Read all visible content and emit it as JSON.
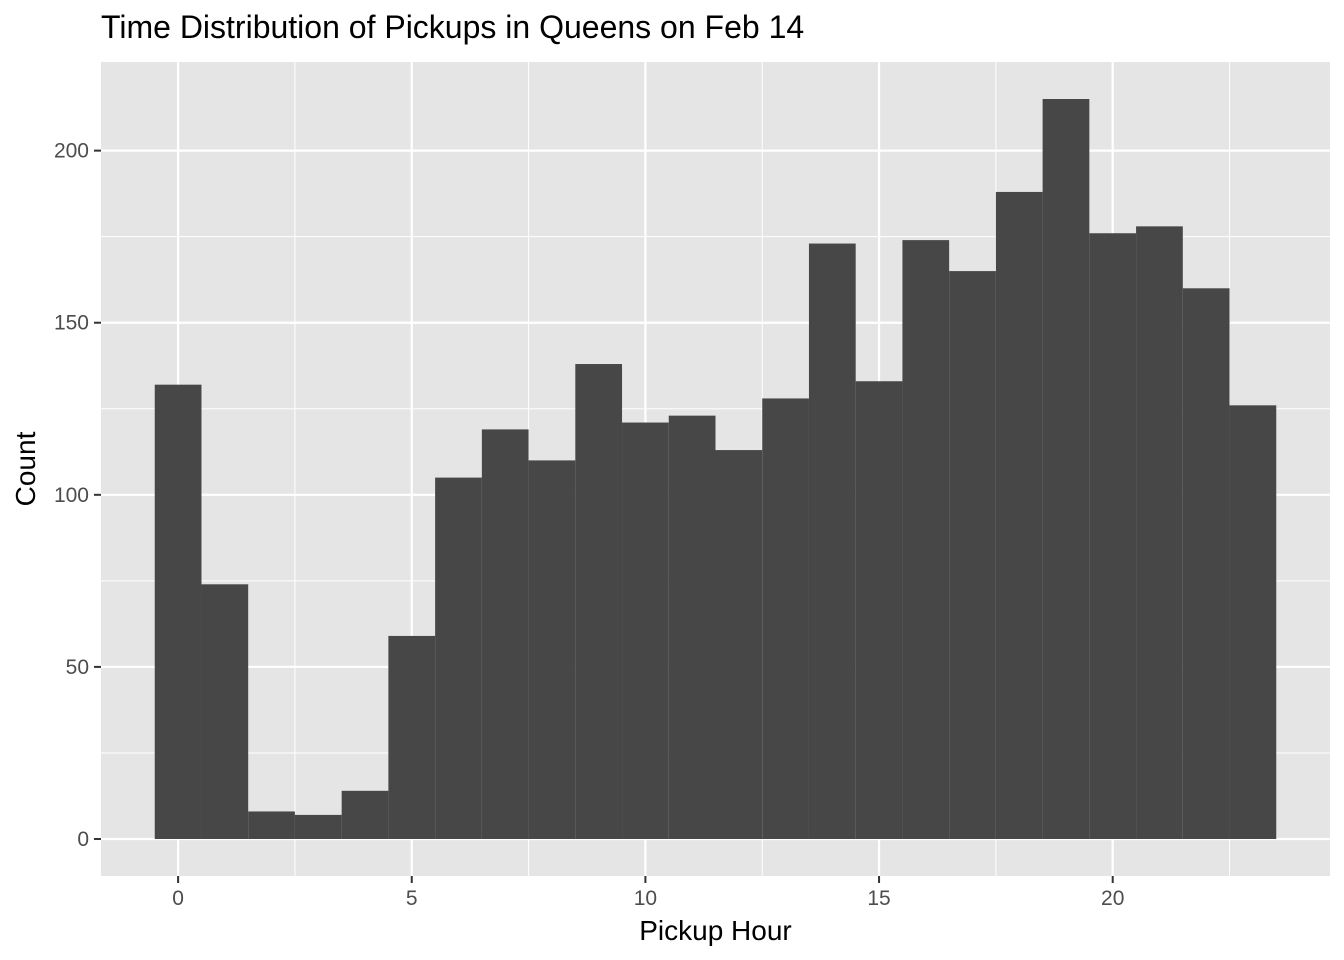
{
  "chart_data": {
    "type": "bar",
    "title": "Time Distribution of Pickups in Queens on Feb 14",
    "xlabel": "Pickup Hour",
    "ylabel": "Count",
    "x": [
      0,
      1,
      2,
      3,
      4,
      5,
      6,
      7,
      8,
      9,
      10,
      11,
      12,
      13,
      14,
      15,
      16,
      17,
      18,
      19,
      20,
      21,
      22,
      23
    ],
    "values": [
      132,
      74,
      8,
      7,
      14,
      59,
      105,
      119,
      110,
      138,
      121,
      123,
      113,
      128,
      173,
      133,
      174,
      165,
      188,
      215,
      176,
      178,
      160,
      126
    ],
    "xlim": [
      -1.65,
      24.65
    ],
    "ylim": [
      -10.75,
      225.75
    ],
    "x_ticks": [
      0,
      5,
      10,
      15,
      20
    ],
    "x_tick_labels": [
      "0",
      "5",
      "10",
      "15",
      "20"
    ],
    "y_ticks": [
      0,
      50,
      100,
      150,
      200
    ],
    "y_tick_labels": [
      "0",
      "50",
      "100",
      "150",
      "200"
    ],
    "grid": true,
    "bar_color": "#474747",
    "panel_color": "#e5e5e5",
    "grid_color": "#ffffff",
    "tick_color": "#333333"
  }
}
